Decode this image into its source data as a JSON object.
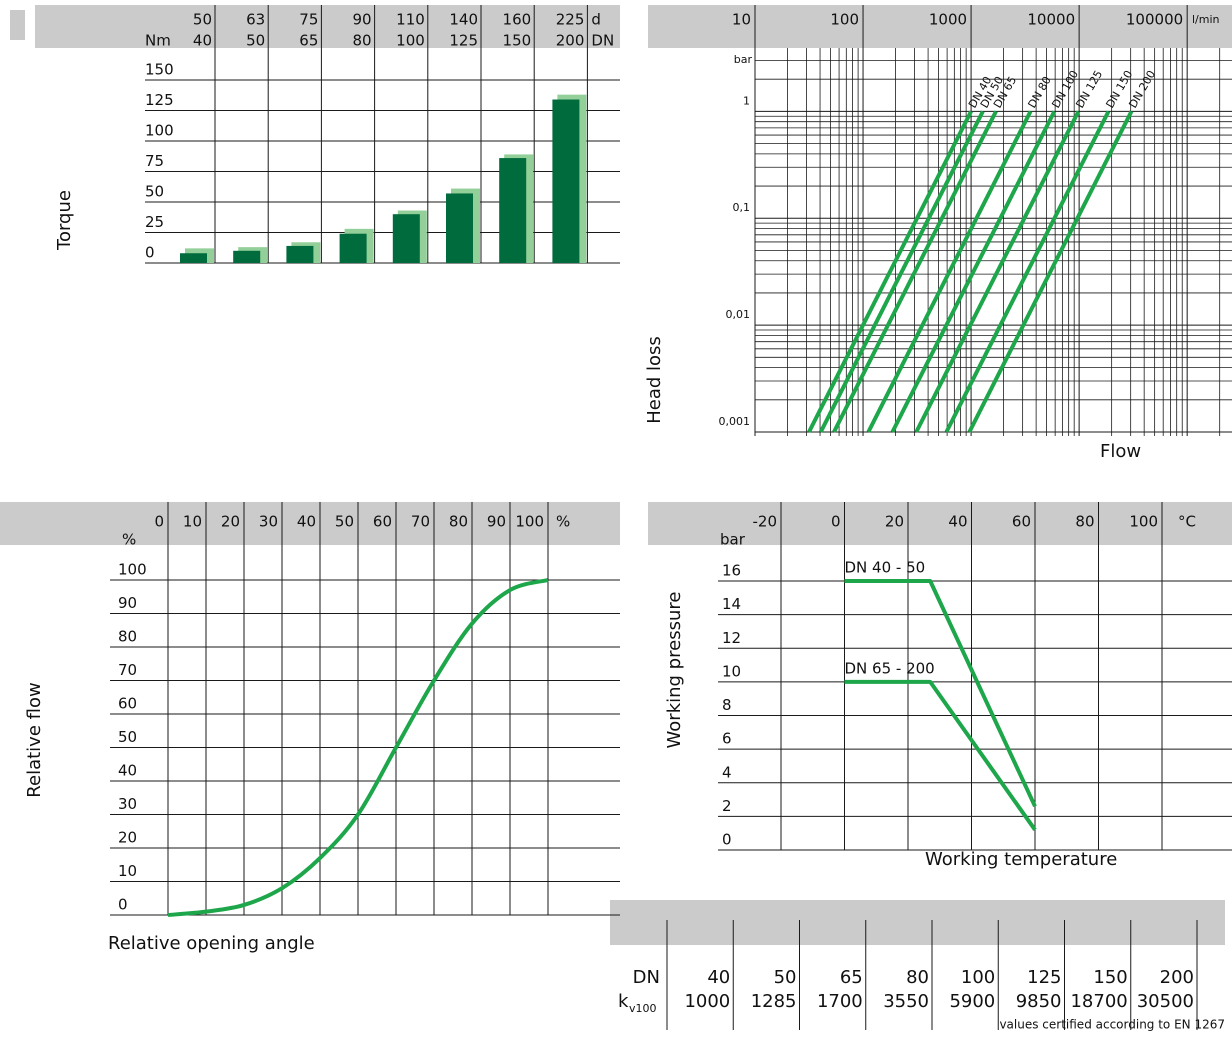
{
  "chart_data": [
    {
      "type": "bar",
      "y_label": "Torque",
      "y_unit": "Nm",
      "row_labels": [
        "d",
        "DN"
      ],
      "d": [
        50,
        63,
        75,
        90,
        110,
        140,
        160,
        225
      ],
      "categories": [
        40,
        50,
        65,
        80,
        100,
        125,
        150,
        200
      ],
      "series": [
        {
          "color": "#93cf98",
          "values": [
            12,
            13,
            17,
            28,
            43,
            61,
            89,
            138
          ]
        },
        {
          "color": "#006b3c",
          "values": [
            8,
            10,
            14,
            24,
            40,
            57,
            86,
            134
          ]
        }
      ],
      "ylim": [
        0,
        150
      ],
      "yticks": [
        0,
        25,
        50,
        75,
        100,
        125,
        150
      ],
      "grid": true
    },
    {
      "type": "line",
      "log_x": true,
      "log_y": true,
      "x_unit": "l/min",
      "y_unit": "bar",
      "x_label": "Flow",
      "y_label": "Head loss",
      "xlim": [
        10,
        260000
      ],
      "ylim": [
        0.001,
        4
      ],
      "xticks": [
        10,
        100,
        1000,
        10000,
        100000
      ],
      "yticks": [
        {
          "value": 0.001,
          "label": "0,001"
        },
        {
          "value": 0.01,
          "label": "0,01"
        },
        {
          "value": 0.1,
          "label": "0,1"
        },
        1
      ],
      "grid": true,
      "series": [
        {
          "name": "DN 40",
          "color": "#1da64a",
          "x": [
            31.6,
            1000
          ],
          "y": [
            0.001,
            1
          ]
        },
        {
          "name": "DN 50",
          "color": "#1da64a",
          "x": [
            40.6,
            1285
          ],
          "y": [
            0.001,
            1
          ]
        },
        {
          "name": "DN 65",
          "color": "#1da64a",
          "x": [
            53.8,
            1700
          ],
          "y": [
            0.001,
            1
          ]
        },
        {
          "name": "DN 80",
          "color": "#1da64a",
          "x": [
            112,
            3550
          ],
          "y": [
            0.001,
            1
          ]
        },
        {
          "name": "DN 100",
          "color": "#1da64a",
          "x": [
            187,
            5900
          ],
          "y": [
            0.001,
            1
          ]
        },
        {
          "name": "DN 125",
          "color": "#1da64a",
          "x": [
            311,
            9850
          ],
          "y": [
            0.001,
            1
          ]
        },
        {
          "name": "DN 150",
          "color": "#1da64a",
          "x": [
            591,
            18700
          ],
          "y": [
            0.001,
            1
          ]
        },
        {
          "name": "DN 200",
          "color": "#1da64a",
          "x": [
            964,
            30500
          ],
          "y": [
            0.001,
            1
          ]
        }
      ]
    },
    {
      "type": "line",
      "x_unit": "%",
      "y_unit": "%",
      "x_label": "Relative opening angle",
      "y_label": "Relative flow",
      "xlim": [
        0,
        100
      ],
      "ylim": [
        0,
        100
      ],
      "xticks": [
        0,
        10,
        20,
        30,
        40,
        50,
        60,
        70,
        80,
        90,
        100
      ],
      "yticks": [
        0,
        10,
        20,
        30,
        40,
        50,
        60,
        70,
        80,
        90,
        100
      ],
      "grid": true,
      "series": [
        {
          "color": "#1da64a",
          "x": [
            0,
            10,
            20,
            30,
            40,
            50,
            60,
            70,
            80,
            90,
            100
          ],
          "y": [
            0,
            1,
            3,
            8,
            17,
            30,
            50,
            70,
            87,
            97,
            100
          ]
        }
      ]
    },
    {
      "type": "line",
      "x_unit": "°C",
      "y_unit": "bar",
      "x_label": "Working temperature",
      "y_label": "Working pressure",
      "xlim": [
        -20,
        100
      ],
      "ylim": [
        0,
        16
      ],
      "xticks": [
        -20,
        0,
        20,
        40,
        60,
        80,
        100
      ],
      "yticks": [
        0,
        2,
        4,
        6,
        8,
        10,
        12,
        14,
        16
      ],
      "grid": true,
      "series": [
        {
          "name": "DN 40 - 50",
          "color": "#1da64a",
          "x": [
            0,
            27,
            60
          ],
          "y": [
            16,
            16,
            2.6
          ]
        },
        {
          "name": "DN 65 - 200",
          "color": "#1da64a",
          "x": [
            0,
            27,
            60
          ],
          "y": [
            10,
            10,
            1.2
          ]
        }
      ]
    }
  ],
  "table": {
    "dn_label": "DN",
    "kv_label": "k",
    "kv_sub": "v100",
    "dn": [
      40,
      50,
      65,
      80,
      100,
      125,
      150,
      200
    ],
    "kv100": [
      1000,
      1285,
      1700,
      3550,
      5900,
      9850,
      18700,
      30500
    ],
    "note": "values certified according to EN 1267"
  }
}
